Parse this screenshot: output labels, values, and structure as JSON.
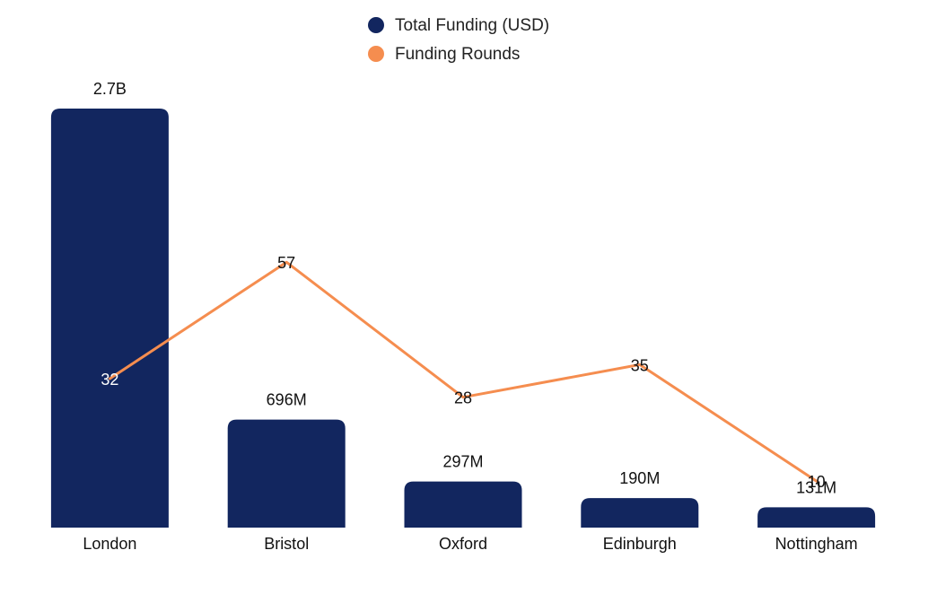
{
  "chart_data": {
    "type": "bar",
    "categories": [
      "London",
      "Bristol",
      "Oxford",
      "Edinburgh",
      "Nottingham"
    ],
    "series": [
      {
        "name": "Total Funding (USD)",
        "kind": "bar",
        "color": "#12265f",
        "values": [
          2700000000,
          696000000,
          297000000,
          190000000,
          131000000
        ],
        "labels": [
          "2.7B",
          "696M",
          "297M",
          "190M",
          "131M"
        ]
      },
      {
        "name": "Funding Rounds",
        "kind": "line",
        "color": "#f58d4f",
        "values": [
          32,
          57,
          28,
          35,
          10
        ],
        "labels": [
          "32",
          "57",
          "28",
          "35",
          "10"
        ]
      }
    ],
    "title": "",
    "xlabel": "",
    "ylabel": "",
    "grid": false,
    "legend": "top-center",
    "axes": {
      "bar_axis_range": [
        0,
        2700000000
      ],
      "line_axis_range": [
        0,
        90
      ]
    }
  },
  "legend": {
    "items": [
      {
        "label": "Total Funding (USD)",
        "color": "#12265f"
      },
      {
        "label": "Funding Rounds",
        "color": "#f58d4f"
      }
    ]
  }
}
